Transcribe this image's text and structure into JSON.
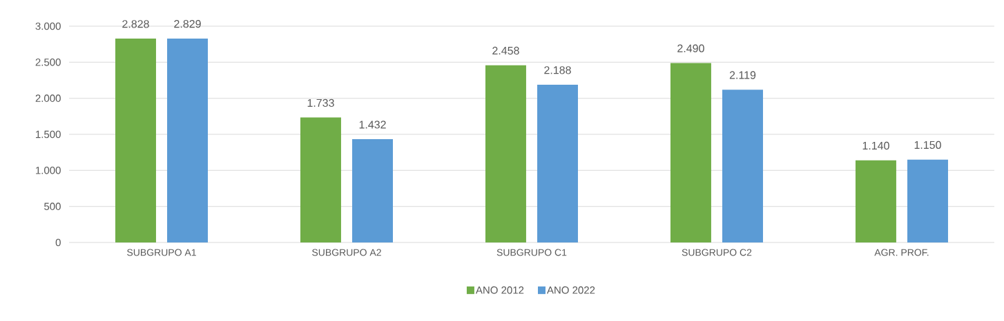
{
  "chart_data": {
    "type": "bar",
    "categories": [
      "SUBGRUPO A1",
      "SUBGRUPO A2",
      "SUBGRUPO C1",
      "SUBGRUPO C2",
      "AGR. PROF."
    ],
    "series": [
      {
        "name": "ANO 2012",
        "color": "#70ad47",
        "values": [
          2828,
          1733,
          2458,
          2490,
          1140
        ],
        "value_labels": [
          "2.828",
          "1.733",
          "2.458",
          "2.490",
          "1.140"
        ]
      },
      {
        "name": "ANO 2022",
        "color": "#5b9bd5",
        "values": [
          2829,
          1432,
          2188,
          2119,
          1150
        ],
        "value_labels": [
          "2.829",
          "1.432",
          "2.188",
          "2.119",
          "1.150"
        ]
      }
    ],
    "ylim": [
      0,
      3000
    ],
    "yticks": [
      0,
      500,
      {
        "value": 1000,
        "label": "1.000"
      },
      {
        "value": 1500,
        "label": "1.500"
      },
      {
        "value": 2000,
        "label": "2.000"
      },
      {
        "value": 2500,
        "label": "2.500"
      },
      {
        "value": 3000,
        "label": "3.000"
      }
    ],
    "grid": "y",
    "legend": "bottom"
  }
}
